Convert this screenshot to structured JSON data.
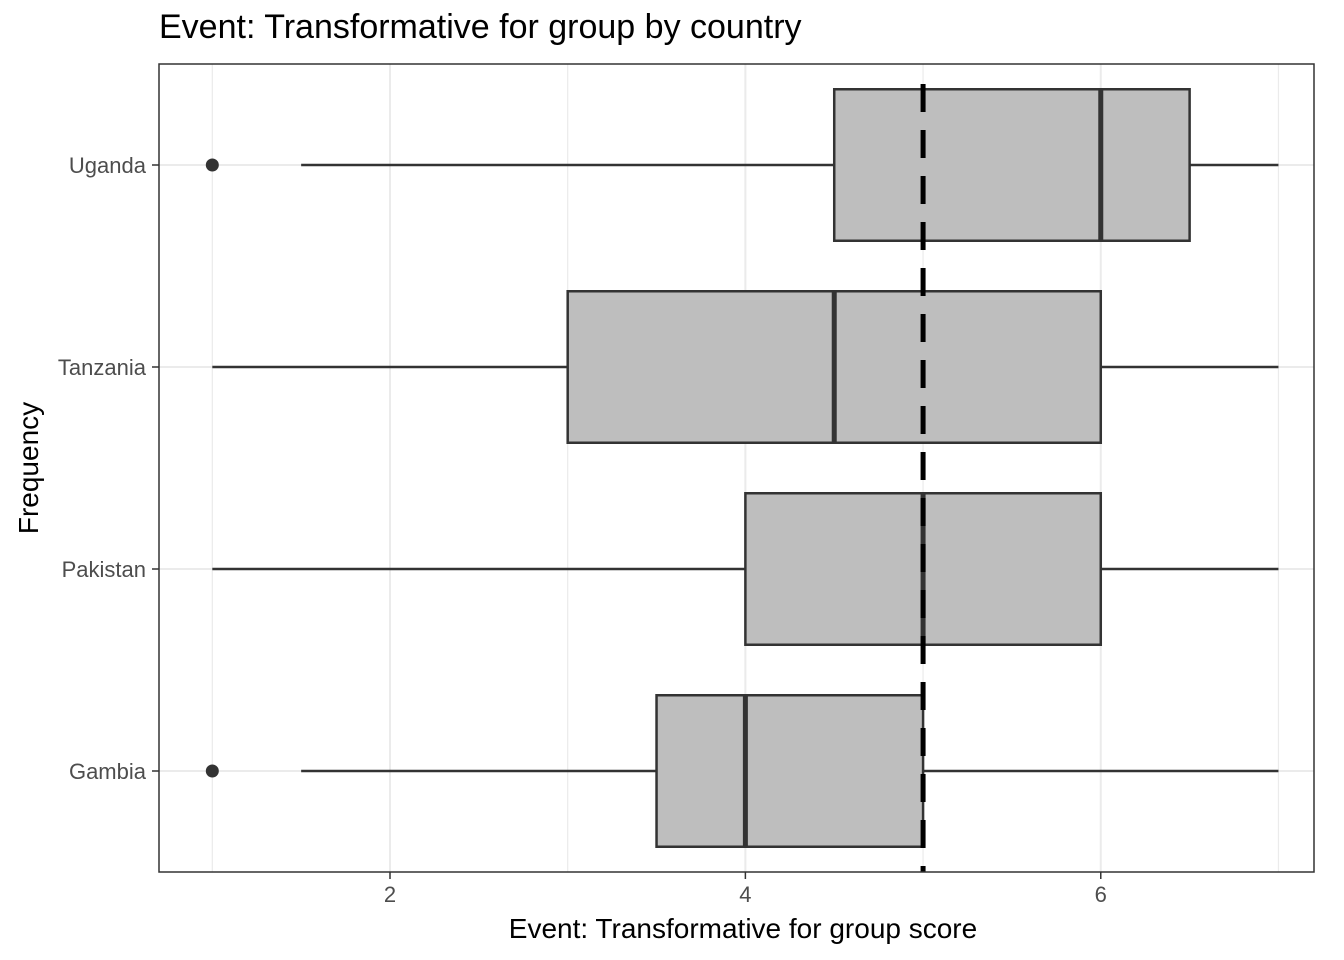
{
  "chart_data": {
    "type": "boxplot",
    "orientation": "horizontal",
    "title": "Event: Transformative for group by country",
    "xlabel": "Event: Transformative for group score",
    "ylabel": "Frequency",
    "xlim": [
      0.7,
      7.2
    ],
    "x_ticks": [
      2,
      4,
      6
    ],
    "reference_line": {
      "x": 5,
      "style": "dashed",
      "color": "#000000"
    },
    "categories": [
      "Gambia",
      "Pakistan",
      "Tanzania",
      "Uganda"
    ],
    "boxes": [
      {
        "category": "Gambia",
        "whisker_low": 1.5,
        "q1": 3.5,
        "median": 4.0,
        "q3": 5.0,
        "whisker_high": 7.0,
        "outliers": [
          1.0
        ]
      },
      {
        "category": "Pakistan",
        "whisker_low": 1.0,
        "q1": 4.0,
        "median": 5.0,
        "q3": 6.0,
        "whisker_high": 7.0,
        "outliers": []
      },
      {
        "category": "Tanzania",
        "whisker_low": 1.0,
        "q1": 3.0,
        "median": 4.5,
        "q3": 6.0,
        "whisker_high": 7.0,
        "outliers": []
      },
      {
        "category": "Uganda",
        "whisker_low": 1.5,
        "q1": 4.5,
        "median": 6.0,
        "q3": 6.5,
        "whisker_high": 7.0,
        "outliers": [
          1.0
        ]
      }
    ],
    "grid": true,
    "colors": {
      "box_fill": "#bebebe",
      "box_stroke": "#333333",
      "grid": "#ebebeb",
      "panel_border": "#333333"
    }
  }
}
